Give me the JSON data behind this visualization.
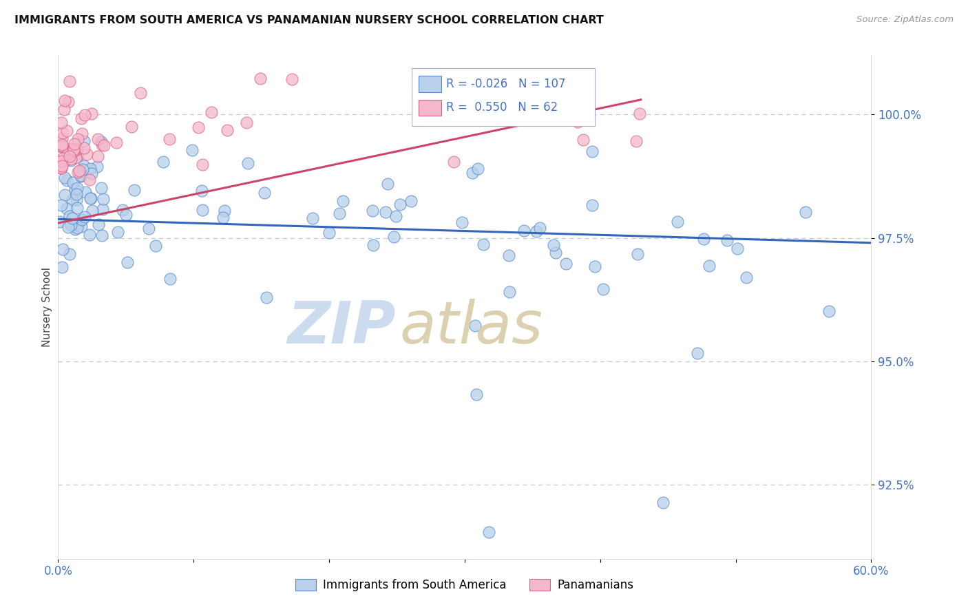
{
  "title": "IMMIGRANTS FROM SOUTH AMERICA VS PANAMANIAN NURSERY SCHOOL CORRELATION CHART",
  "source": "Source: ZipAtlas.com",
  "ylabel": "Nursery School",
  "xlim": [
    0.0,
    60.0
  ],
  "ylim": [
    91.0,
    101.2
  ],
  "ytick_vals": [
    92.5,
    95.0,
    97.5,
    100.0
  ],
  "ytick_labels": [
    "92.5%",
    "95.0%",
    "97.5%",
    "100.0%"
  ],
  "xtick_vals": [
    0.0,
    10.0,
    20.0,
    30.0,
    40.0,
    50.0,
    60.0
  ],
  "xtick_labels": [
    "0.0%",
    "",
    "",
    "",
    "",
    "",
    "60.0%"
  ],
  "blue_R": -0.026,
  "blue_N": 107,
  "pink_R": 0.55,
  "pink_N": 62,
  "legend1_label": "Immigrants from South America",
  "legend2_label": "Panamanians",
  "blue_fill_color": "#b8d0ea",
  "pink_fill_color": "#f4b8cc",
  "blue_edge_color": "#5588cc",
  "pink_edge_color": "#e06080",
  "blue_line_color": "#3366bb",
  "pink_line_color": "#cc4466",
  "tick_color": "#4472c4",
  "grid_color": "#c0c8d8",
  "title_color": "#111111",
  "ylabel_color": "#444444",
  "source_color": "#999999",
  "watermark_zip_color": "#c8d8ee",
  "watermark_atlas_color": "#d8cca8",
  "blue_scatter_seed": 123,
  "pink_scatter_seed": 456,
  "blue_line_x0": 0.0,
  "blue_line_y0": 97.88,
  "blue_line_x1": 60.0,
  "blue_line_y1": 97.4,
  "pink_line_x0": 0.0,
  "pink_line_y0": 97.8,
  "pink_line_x1": 43.0,
  "pink_line_y1": 100.3
}
